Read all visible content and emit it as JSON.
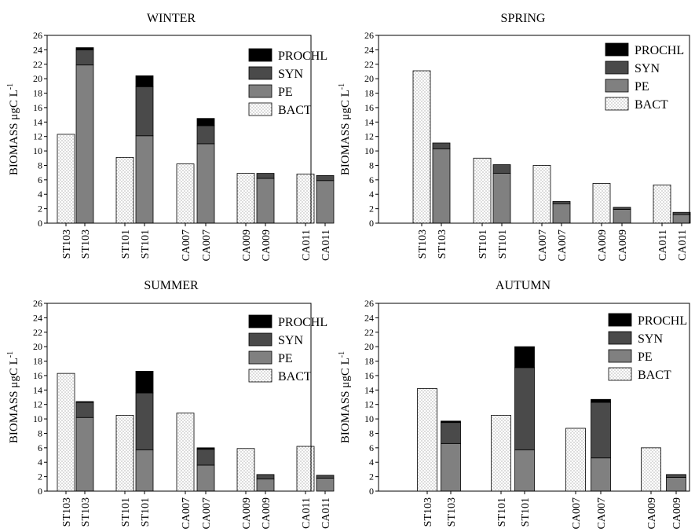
{
  "chart_data": [
    {
      "type": "bar",
      "title": "WINTER",
      "ylabel_main": "BIOMASS μgC L",
      "ylabel_sup": "-1",
      "ylim": [
        0,
        26
      ],
      "yticks": [
        "0",
        "2",
        "4",
        "6",
        "8",
        "10",
        "12",
        "14",
        "16",
        "18",
        "20",
        "22",
        "24",
        "26"
      ],
      "legend_position": "top-right",
      "legend": [
        "PROCHL",
        "SYN",
        "PE",
        "BACT"
      ],
      "categories": [
        "ST103",
        "ST103",
        "ST101",
        "ST101",
        "CA007",
        "CA007",
        "CA009",
        "CA009",
        "CA011",
        "CA011"
      ],
      "series": [
        {
          "name": "BACT",
          "values": [
            12.3,
            0,
            9.1,
            0,
            8.2,
            0,
            6.9,
            0,
            6.8,
            0
          ]
        },
        {
          "name": "PE",
          "values": [
            0,
            21.9,
            0,
            12.1,
            0,
            11.0,
            0,
            6.2,
            0,
            5.9
          ]
        },
        {
          "name": "SYN",
          "values": [
            0,
            2.1,
            0,
            6.8,
            0,
            2.5,
            0,
            0.7,
            0,
            0.7
          ]
        },
        {
          "name": "PROCHL",
          "values": [
            0,
            0.3,
            0,
            1.5,
            0,
            1.0,
            0,
            0,
            0,
            0
          ]
        }
      ]
    },
    {
      "type": "bar",
      "title": "SPRING",
      "ylabel_main": "BIOMASS μgC L",
      "ylabel_sup": "-1",
      "ylim": [
        0,
        26
      ],
      "yticks": [
        "0",
        "2",
        "4",
        "6",
        "8",
        "10",
        "12",
        "14",
        "16",
        "18",
        "20",
        "22",
        "24",
        "26"
      ],
      "legend_position": "top-right",
      "legend": [
        "PROCHL",
        "SYN",
        "PE",
        "BACT"
      ],
      "categories": [
        "ST103",
        "ST103",
        "ST101",
        "ST101",
        "CA007",
        "CA007",
        "CA009",
        "CA009",
        "CA011",
        "CA011"
      ],
      "series": [
        {
          "name": "BACT",
          "values": [
            21.1,
            0,
            9.0,
            0,
            8.0,
            0,
            5.5,
            0,
            5.3,
            0
          ]
        },
        {
          "name": "PE",
          "values": [
            0,
            10.3,
            0,
            6.9,
            0,
            2.7,
            0,
            1.9,
            0,
            1.2
          ]
        },
        {
          "name": "SYN",
          "values": [
            0,
            0.8,
            0,
            1.2,
            0,
            0.3,
            0,
            0.3,
            0,
            0.3
          ]
        },
        {
          "name": "PROCHL",
          "values": [
            0,
            0,
            0,
            0,
            0,
            0,
            0,
            0,
            0,
            0
          ]
        }
      ]
    },
    {
      "type": "bar",
      "title": "SUMMER",
      "ylabel_main": "BIOMASS μgC L",
      "ylabel_sup": "-1",
      "ylim": [
        0,
        26
      ],
      "yticks": [
        "0",
        "2",
        "4",
        "6",
        "8",
        "10",
        "12",
        "14",
        "16",
        "18",
        "20",
        "22",
        "24",
        "26"
      ],
      "legend_position": "top-right",
      "legend": [
        "PROCHL",
        "SYN",
        "PE",
        "BACT"
      ],
      "categories": [
        "ST103",
        "ST103",
        "ST101",
        "ST101",
        "CA007",
        "CA007",
        "CA009",
        "CA009",
        "CA011",
        "CA011"
      ],
      "series": [
        {
          "name": "BACT",
          "values": [
            16.3,
            0,
            10.5,
            0,
            10.8,
            0,
            5.9,
            0,
            6.2,
            0
          ]
        },
        {
          "name": "PE",
          "values": [
            0,
            10.2,
            0,
            5.7,
            0,
            3.6,
            0,
            1.7,
            0,
            1.8
          ]
        },
        {
          "name": "SYN",
          "values": [
            0,
            2.1,
            0,
            7.9,
            0,
            2.2,
            0,
            0.6,
            0,
            0.4
          ]
        },
        {
          "name": "PROCHL",
          "values": [
            0,
            0.1,
            0,
            3.0,
            0,
            0.2,
            0,
            0,
            0,
            0
          ]
        }
      ]
    },
    {
      "type": "bar",
      "title": "AUTUMN",
      "ylabel_main": "BIOMASS μgC L",
      "ylabel_sup": "-1",
      "ylim": [
        0,
        26
      ],
      "yticks": [
        "0",
        "2",
        "4",
        "6",
        "8",
        "10",
        "12",
        "14",
        "16",
        "18",
        "20",
        "22",
        "24",
        "26"
      ],
      "legend_position": "top-right",
      "legend": [
        "PROCHL",
        "SYN",
        "PE",
        "BACT"
      ],
      "categories": [
        "ST103",
        "ST103",
        "ST101",
        "ST101",
        "CA007",
        "CA007",
        "CA009",
        "CA009"
      ],
      "series": [
        {
          "name": "BACT",
          "values": [
            14.2,
            0,
            10.5,
            0,
            8.7,
            0,
            6.0,
            0
          ]
        },
        {
          "name": "PE",
          "values": [
            0,
            6.6,
            0,
            5.7,
            0,
            4.6,
            0,
            1.9
          ]
        },
        {
          "name": "SYN",
          "values": [
            0,
            2.9,
            0,
            11.4,
            0,
            7.7,
            0,
            0.4
          ]
        },
        {
          "name": "PROCHL",
          "values": [
            0,
            0.2,
            0,
            2.9,
            0,
            0.4,
            0,
            0
          ]
        }
      ]
    }
  ],
  "colors": {
    "BACT": "#ffffff",
    "PE": "#808080",
    "SYN": "#4a4a4a",
    "PROCHL": "#000000",
    "dots": "#555555"
  }
}
